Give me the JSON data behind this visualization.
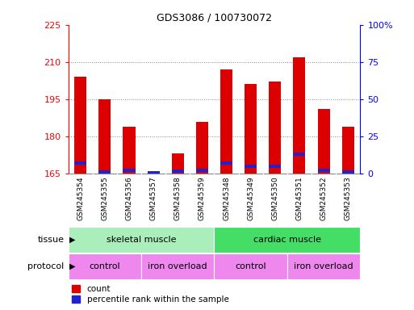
{
  "title": "GDS3086 / 100730072",
  "samples": [
    "GSM245354",
    "GSM245355",
    "GSM245356",
    "GSM245357",
    "GSM245358",
    "GSM245359",
    "GSM245348",
    "GSM245349",
    "GSM245350",
    "GSM245351",
    "GSM245352",
    "GSM245353"
  ],
  "count_values": [
    204,
    195,
    184,
    165,
    173,
    186,
    207,
    201,
    202,
    212,
    191,
    184
  ],
  "percentile_values": [
    7,
    1,
    2,
    0.5,
    1.5,
    2,
    7,
    5,
    5,
    13,
    2,
    1
  ],
  "y_min": 165,
  "y_max": 225,
  "y_ticks": [
    165,
    180,
    195,
    210,
    225
  ],
  "y2_ticks": [
    0,
    25,
    50,
    75,
    100
  ],
  "bar_color_red": "#dd0000",
  "bar_color_blue": "#2222cc",
  "tissue_labels": [
    "skeletal muscle",
    "cardiac muscle"
  ],
  "tissue_colors": [
    "#aaeebb",
    "#44dd66"
  ],
  "protocol_labels": [
    "control",
    "iron overload",
    "control",
    "iron overload"
  ],
  "protocol_ranges": [
    0,
    3,
    6,
    9,
    12
  ],
  "protocol_color": "#ee88ee",
  "background_color": "#ffffff",
  "grid_color": "#888888",
  "xticklabel_bg": "#dddddd"
}
